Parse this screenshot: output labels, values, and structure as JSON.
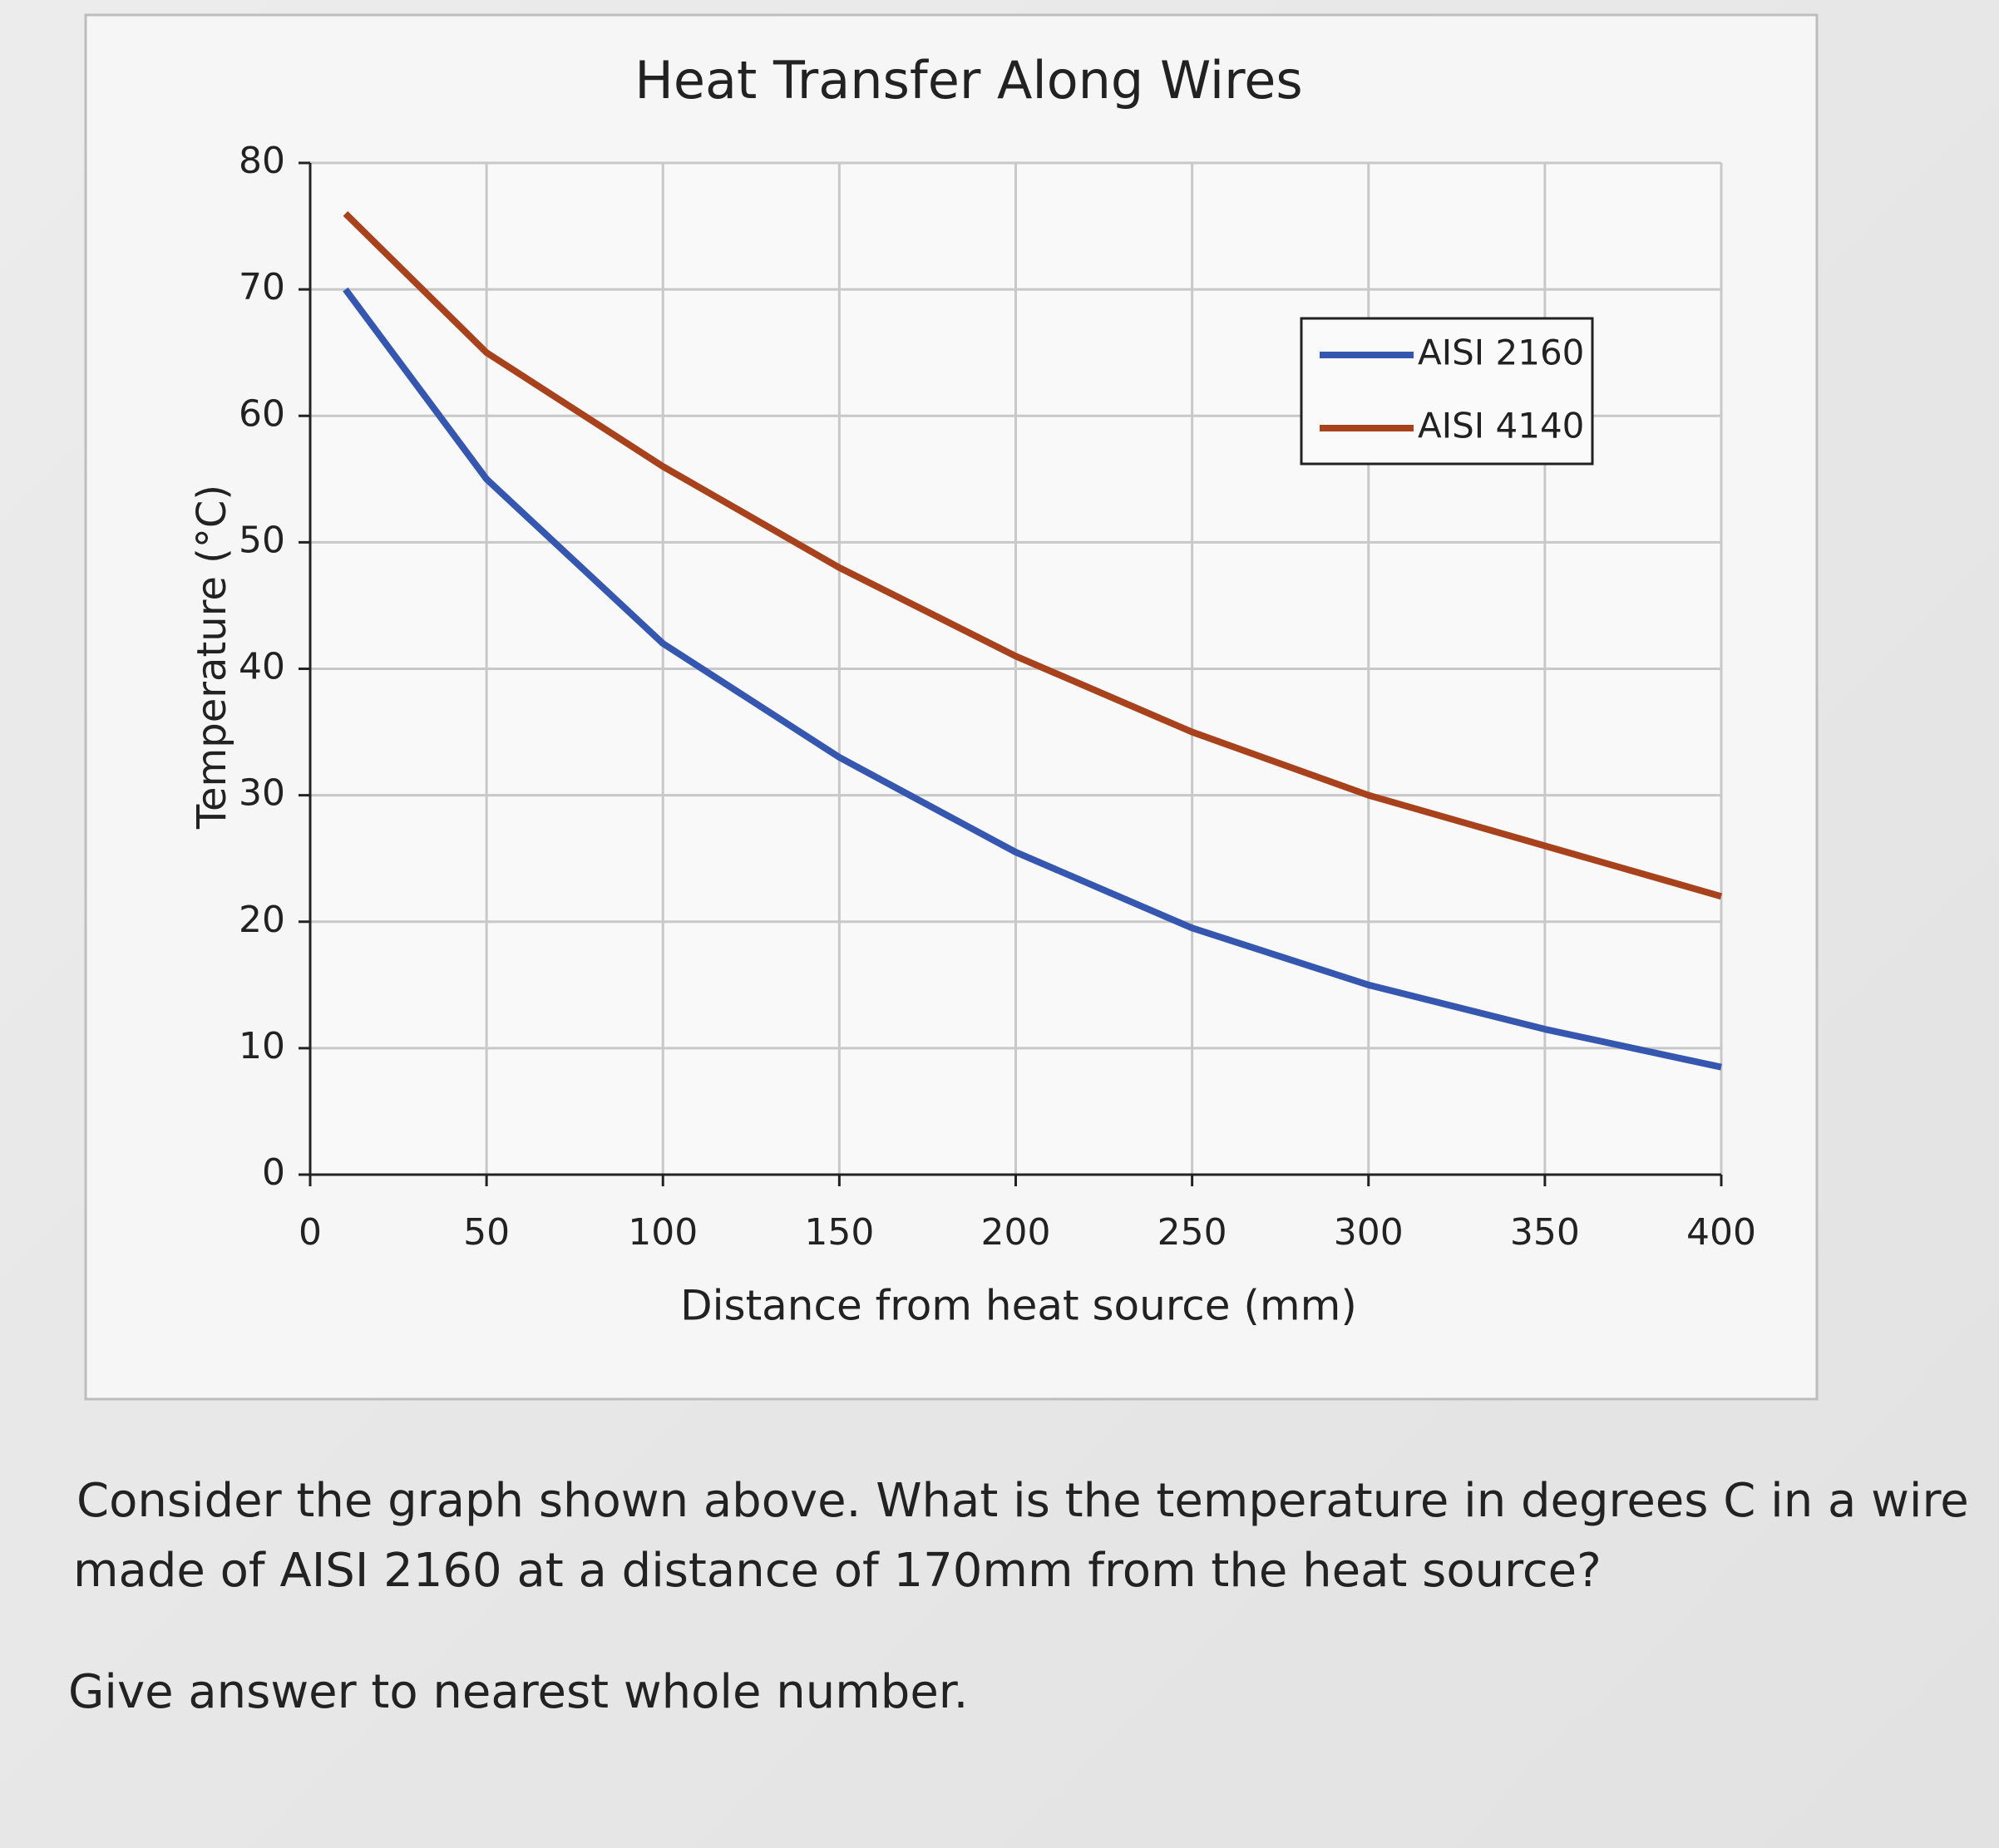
{
  "chart_data": {
    "type": "line",
    "title": "Heat Transfer Along Wires",
    "x_label": "Distance from heat source (mm)",
    "y_label": "Temperature (°C)",
    "x": [
      10,
      50,
      100,
      150,
      200,
      250,
      300,
      350,
      400
    ],
    "series": [
      {
        "name": "AISI 2160",
        "color": "#3557b0",
        "values": [
          70,
          55,
          42,
          33,
          25.5,
          19.5,
          15,
          11.5,
          8.5
        ]
      },
      {
        "name": "AISI 4140",
        "color": "#a8421c",
        "values": [
          76,
          65,
          56,
          48,
          41,
          35,
          30,
          26,
          22
        ]
      }
    ],
    "xlim": [
      0,
      400
    ],
    "xticks": [
      0,
      50,
      100,
      150,
      200,
      250,
      300,
      350,
      400
    ],
    "ylim": [
      0,
      80
    ],
    "yticks": [
      0,
      10,
      20,
      30,
      40,
      50,
      60,
      70,
      80
    ],
    "grid": true,
    "legend": "upper right"
  },
  "question": {
    "line1": "Consider the graph shown above. What is the temperature in degrees C in a wire",
    "line2": "made of AISI 2160 at a distance of 170mm from the heat source?",
    "note": "Give answer to nearest whole number."
  }
}
